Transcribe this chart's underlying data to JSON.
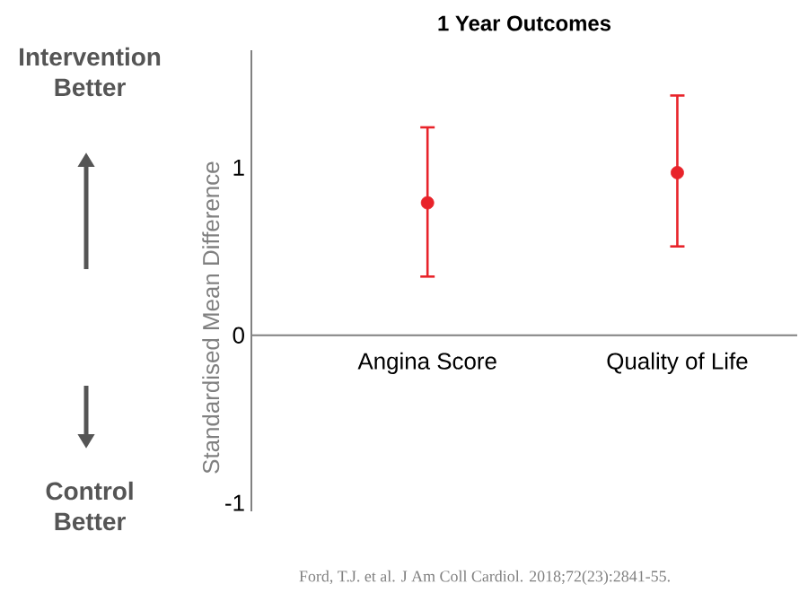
{
  "chart_data": {
    "type": "scatter",
    "title": "1 Year Outcomes",
    "ylabel": "Standardised Mean Difference",
    "categories": [
      "Angina Score",
      "Quality of Life"
    ],
    "values": [
      0.79,
      0.97
    ],
    "errors": [
      [
        0.35,
        1.24
      ],
      [
        0.53,
        1.43
      ]
    ],
    "color": "#e8232a",
    "marker": "circle",
    "ylim": [
      -1.05,
      1.7
    ],
    "yticks": [
      -1,
      0,
      1
    ],
    "annotations": [
      "Intervention Better",
      "Control Better",
      "Ford, T.J. et al. J Am Coll Cardiol. 2018;72(23):2841-55."
    ]
  }
}
